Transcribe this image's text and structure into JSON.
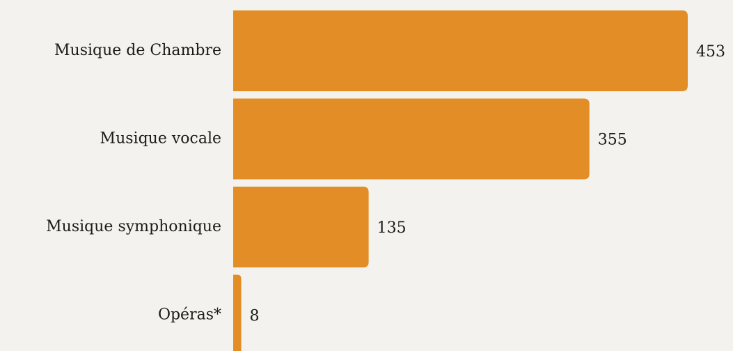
{
  "chart_data": {
    "type": "bar",
    "orientation": "horizontal",
    "categories": [
      "Musique de Chambre",
      "Musique vocale",
      "Musique symphonique",
      "Opéras*"
    ],
    "values": [
      453,
      355,
      135,
      8
    ],
    "color": "#e38d26"
  }
}
